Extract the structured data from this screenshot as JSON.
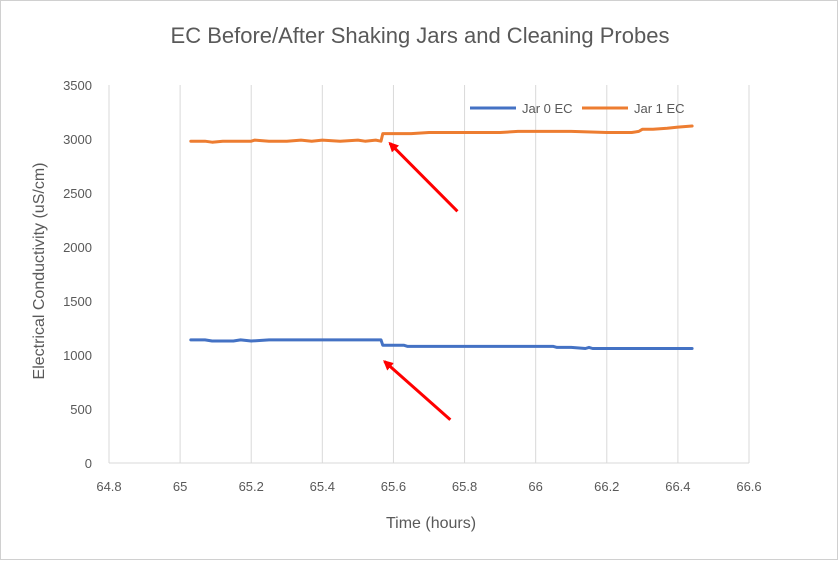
{
  "chart_data": {
    "type": "line",
    "title": "EC Before/After Shaking Jars and Cleaning Probes",
    "xlabel": "Time (hours)",
    "ylabel": "Electrical Conductivity (uS/cm)",
    "xlim": [
      64.8,
      66.6
    ],
    "ylim": [
      0,
      3500
    ],
    "xticks": [
      64.8,
      65,
      65.2,
      65.4,
      65.6,
      65.8,
      66,
      66.2,
      66.4,
      66.6
    ],
    "xtick_labels": [
      "64.8",
      "65",
      "65.2",
      "65.4",
      "65.6",
      "65.8",
      "66",
      "66.2",
      "66.4",
      "66.6"
    ],
    "yticks": [
      0,
      500,
      1000,
      1500,
      2000,
      2500,
      3000,
      3500
    ],
    "ytick_labels": [
      "0",
      "500",
      "1000",
      "1500",
      "2000",
      "2500",
      "3000",
      "3500"
    ],
    "grid": "vertical",
    "legend_position": "top-right",
    "series": [
      {
        "name": "Jar 0 EC",
        "color": "#4472c4",
        "x": [
          65.03,
          65.07,
          65.09,
          65.15,
          65.17,
          65.2,
          65.25,
          65.3,
          65.4,
          65.5,
          65.565,
          65.57,
          65.6,
          65.63,
          65.64,
          65.7,
          65.8,
          65.9,
          66.0,
          66.05,
          66.06,
          66.1,
          66.14,
          66.15,
          66.16,
          66.2,
          66.3,
          66.44
        ],
        "y": [
          1140,
          1140,
          1130,
          1130,
          1140,
          1130,
          1140,
          1140,
          1140,
          1140,
          1140,
          1090,
          1090,
          1090,
          1080,
          1080,
          1080,
          1080,
          1080,
          1080,
          1070,
          1070,
          1060,
          1070,
          1060,
          1060,
          1060,
          1060
        ]
      },
      {
        "name": "Jar 1 EC",
        "color": "#ed7d31",
        "x": [
          65.03,
          65.07,
          65.09,
          65.12,
          65.15,
          65.2,
          65.21,
          65.25,
          65.3,
          65.34,
          65.37,
          65.4,
          65.45,
          65.5,
          65.52,
          65.55,
          65.565,
          65.57,
          65.6,
          65.65,
          65.7,
          65.8,
          65.85,
          65.9,
          65.95,
          66.0,
          66.1,
          66.2,
          66.24,
          66.27,
          66.29,
          66.3,
          66.33,
          66.37,
          66.4,
          66.44
        ],
        "y": [
          2980,
          2980,
          2970,
          2980,
          2980,
          2980,
          2990,
          2980,
          2980,
          2990,
          2980,
          2990,
          2980,
          2990,
          2980,
          2990,
          2980,
          3050,
          3050,
          3050,
          3060,
          3060,
          3060,
          3060,
          3070,
          3070,
          3070,
          3060,
          3060,
          3060,
          3070,
          3090,
          3090,
          3100,
          3110,
          3120
        ]
      }
    ],
    "annotations": [
      {
        "type": "arrow",
        "color": "#ff0000",
        "from": [
          65.78,
          2330
        ],
        "to": [
          65.59,
          2960
        ]
      },
      {
        "type": "arrow",
        "color": "#ff0000",
        "from": [
          65.76,
          400
        ],
        "to": [
          65.575,
          940
        ]
      }
    ]
  }
}
